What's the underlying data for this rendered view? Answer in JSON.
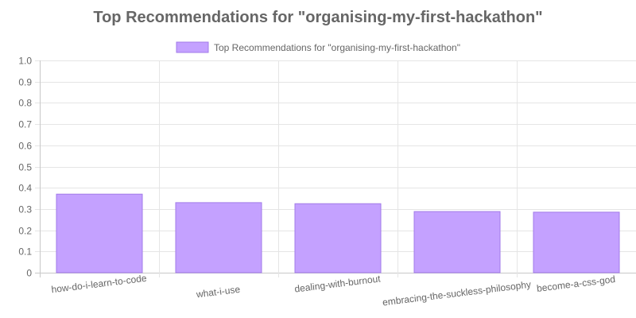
{
  "chart_data": {
    "type": "bar",
    "title": "Top Recommendations for \"organising-my-first-hackathon\"",
    "legend": {
      "position": "top",
      "entries": [
        "Top Recommendations for \"organising-my-first-hackathon\""
      ]
    },
    "categories": [
      "how-do-i-learn-to-code",
      "what-i-use",
      "dealing-with-burnout",
      "embracing-the-suckless-philosophy",
      "become-a-css-god"
    ],
    "series": [
      {
        "name": "Top Recommendations for \"organising-my-first-hackathon\"",
        "values": [
          0.37,
          0.33,
          0.325,
          0.288,
          0.285
        ]
      }
    ],
    "ylim": [
      0,
      1.0
    ],
    "yticks": [
      "0",
      "0.1",
      "0.2",
      "0.3",
      "0.4",
      "0.5",
      "0.6",
      "0.7",
      "0.8",
      "0.9",
      "1.0"
    ],
    "grid": true,
    "colors": {
      "bar_fill": "#c4a1ff",
      "bar_stroke": "#a27be8",
      "grid": "#e5e5e5",
      "text": "#666666"
    }
  }
}
